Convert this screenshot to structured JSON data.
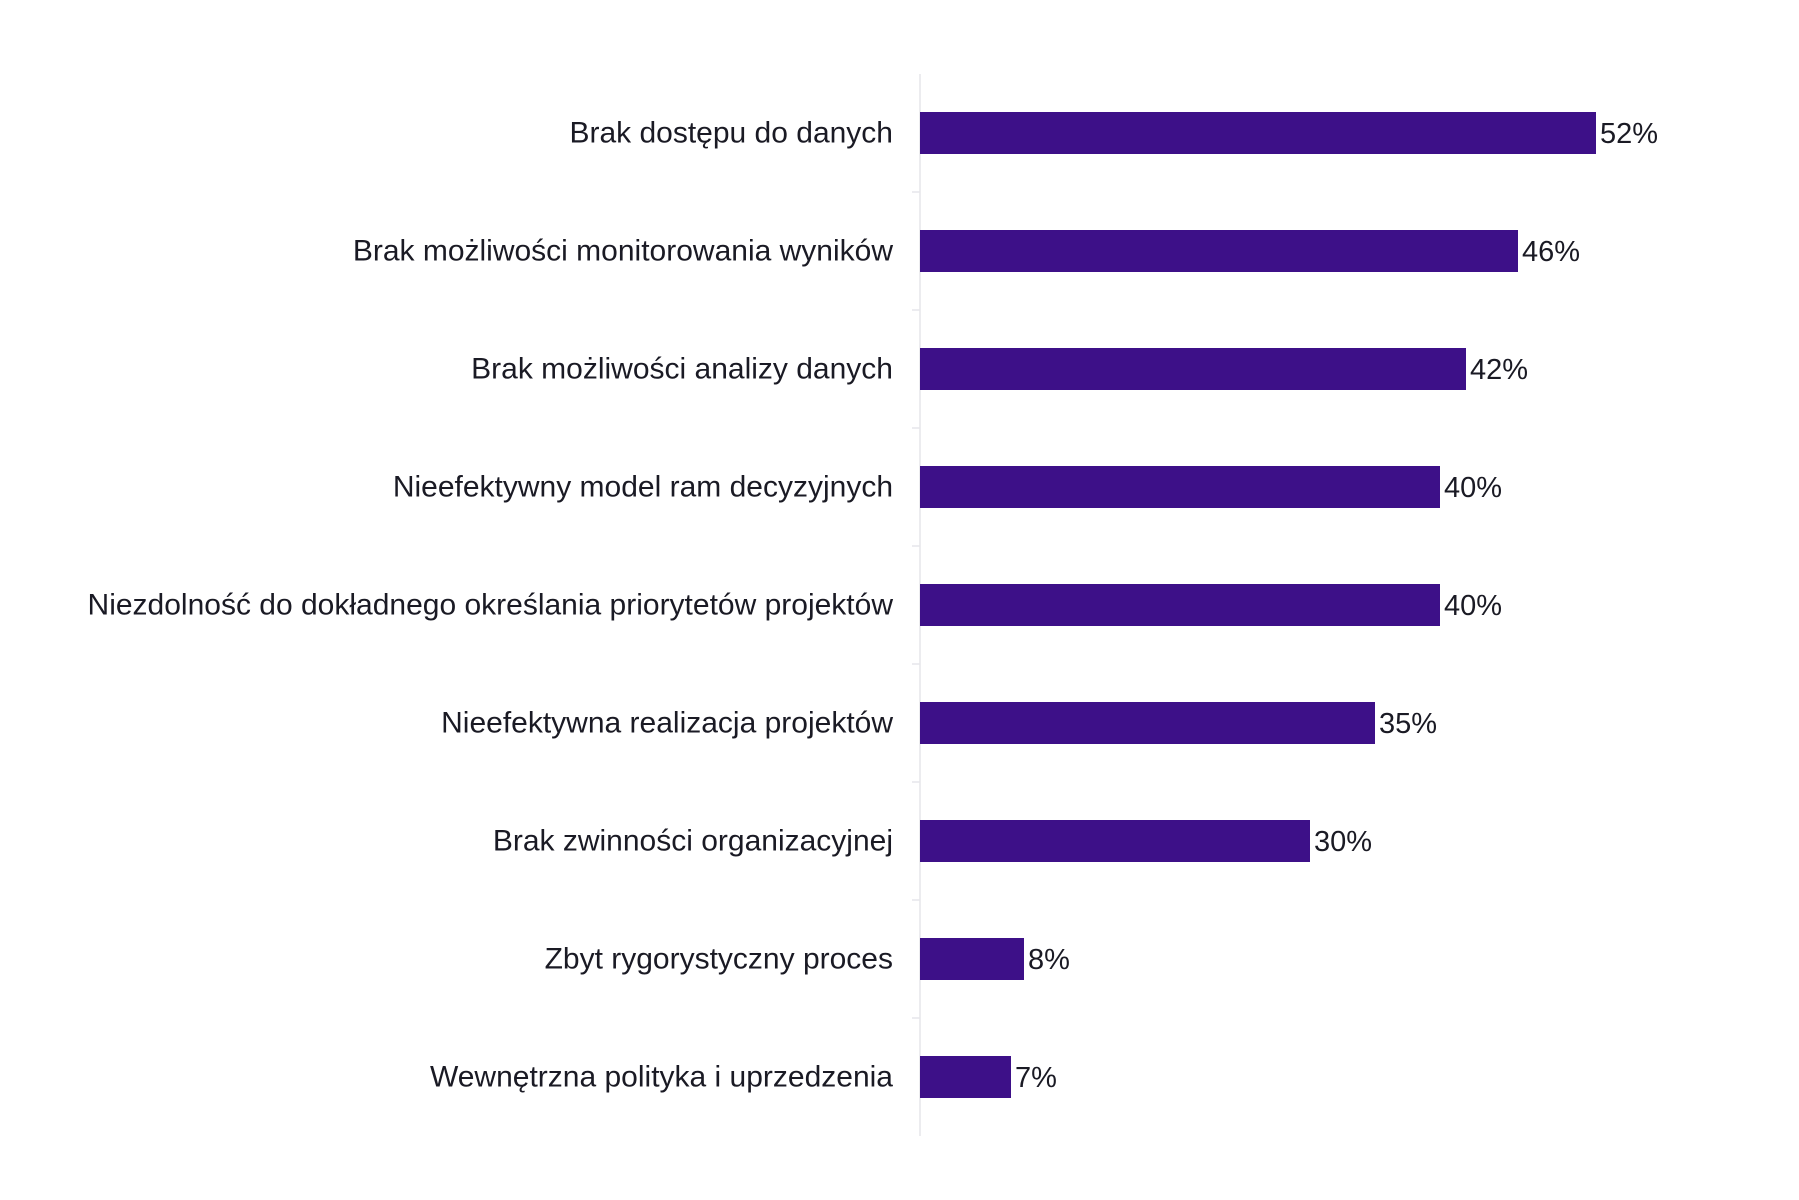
{
  "chart_data": {
    "type": "bar",
    "orientation": "horizontal",
    "categories": [
      "Brak dostępu do danych",
      "Brak możliwości monitorowania wyników",
      "Brak możliwości analizy danych",
      "Nieefektywny model ram decyzyjnych",
      "Niezdolność do dokładnego określania priorytetów projektów",
      "Nieefektywna realizacja projektów",
      "Brak zwinności organizacyjnej",
      "Zbyt rygorystyczny proces",
      "Wewnętrzna polityka i uprzedzenia"
    ],
    "values": [
      52,
      46,
      42,
      40,
      40,
      35,
      30,
      8,
      7
    ],
    "value_labels": [
      "52%",
      "46%",
      "42%",
      "40%",
      "40%",
      "35%",
      "30%",
      "8%",
      "7%"
    ],
    "value_unit": "%",
    "xlim": [
      0,
      100
    ],
    "grid": false,
    "colors": {
      "bar": "#3d1088",
      "axis": "#e6e6ea",
      "text": "#1a1a24"
    }
  }
}
